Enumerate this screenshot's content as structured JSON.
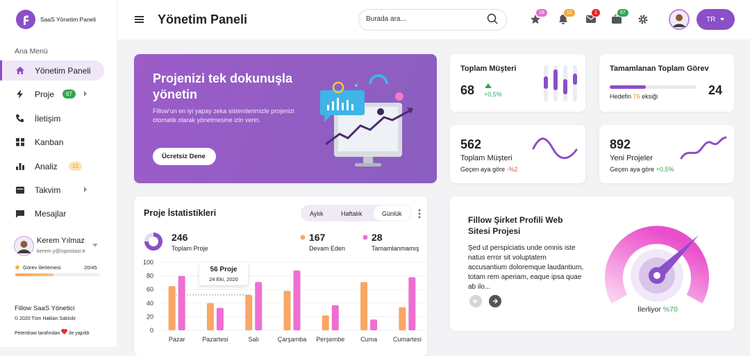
{
  "sidebar": {
    "brand": "SaaS Yönetim Paneli",
    "section": "Ana Menü",
    "menu": [
      {
        "label": "Yönetim Paneli"
      },
      {
        "label": "Proje",
        "badge": 67
      },
      {
        "label": "İletişim"
      },
      {
        "label": "Kanban"
      },
      {
        "label": "Analiz",
        "badge": 12
      },
      {
        "label": "Takvim"
      },
      {
        "label": "Mesajlar"
      }
    ],
    "user": {
      "name": "Kerem Yılmaz",
      "email": "kerem.y@ispostasi.tr"
    },
    "progress": {
      "label": "Görev İlerlemesi",
      "value": "20/45"
    },
    "footer": {
      "app": "Fillow SaaS Yönetici",
      "copyright": "© 2020 Tüm Hakları Saklıdır",
      "credit_before": "Peterdraw tarafından",
      "credit_after": "ile yapıldı"
    }
  },
  "header": {
    "title": "Yönetim Paneli",
    "search_placeholder": "Burada ara...",
    "badges": [
      18,
      12,
      1,
      67
    ],
    "language": "TR"
  },
  "banner": {
    "title": "Projenizi tek dokunuşla yönetin",
    "text": "Fillow'un en iyi yapay zeka sistemlerimizle projenizi otomatik olarak yönetmesine izin verin.",
    "button": "Ücretsiz Dene"
  },
  "cards": [
    {
      "title": "Toplam Müşteri",
      "value": 68,
      "change": "+0,5%"
    },
    {
      "title": "Tamamlanan Toplam Görev",
      "value": 24,
      "note_before": "Hedefin",
      "note_value": 76,
      "note_after": "eksiği"
    },
    {
      "value": 562,
      "label": "Toplam Müşteri",
      "note": "Geçen aya göre",
      "change": "-%2"
    },
    {
      "value": 892,
      "label": "Yeni Projeler",
      "note": "Geçen aya göre",
      "change": "+0,5%"
    }
  ],
  "stats": {
    "title": "Proje İstatistikleri",
    "tabs": [
      "Aylık",
      "Haftalık",
      "Günlük"
    ],
    "summary": [
      {
        "value": 246,
        "label": "Toplam Proje"
      },
      {
        "value": 167,
        "label": "Devam Eden"
      },
      {
        "value": 28,
        "label": "Tamamlanmamış"
      }
    ],
    "tooltip": {
      "value": "56 Proje",
      "date": "24 Eki, 2020"
    }
  },
  "chart_data": {
    "type": "bar",
    "categories": [
      "Pazar",
      "Pazartesi",
      "Salı",
      "Çarşamba",
      "Perşembe",
      "Cuma",
      "Cumartesi"
    ],
    "series": [
      {
        "color": "#f8a765",
        "values": [
          65,
          40,
          52,
          58,
          22,
          71,
          34
        ]
      },
      {
        "color": "#ee6fd2",
        "values": [
          80,
          33,
          71,
          88,
          37,
          16,
          78
        ]
      }
    ],
    "ylim": [
      0,
      100
    ],
    "yticks": [
      0,
      20,
      40,
      60,
      80,
      100
    ],
    "grid": true
  },
  "project": {
    "title": "Fillow Şirket Profili Web Sitesi Projesi",
    "text": "Şed ut perspiciatis unde omnis iste natus error sit voluptatem accusantium doloremque laudantium, totam rem aperiam, eaque ipsa quae ab ilo...",
    "status": "İlerliyor",
    "progress": "%70"
  }
}
